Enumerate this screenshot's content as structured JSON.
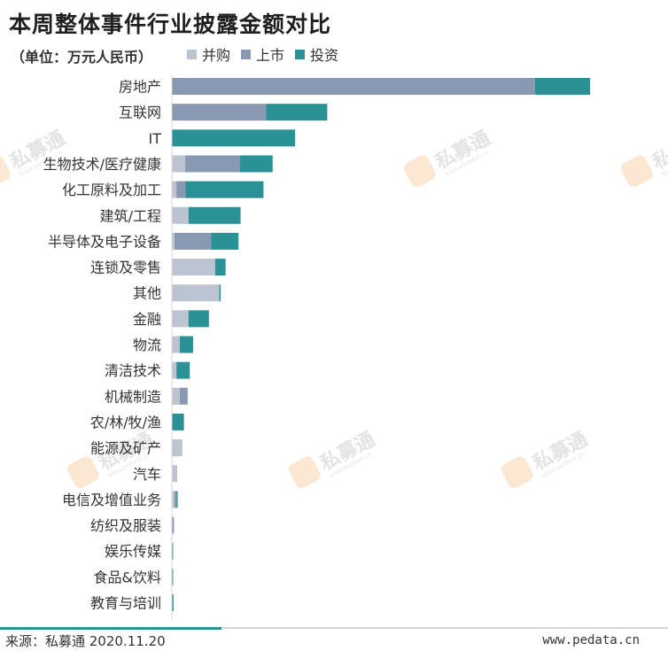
{
  "title": "本周整体事件行业披露金额对比",
  "unit": "（单位：万元人民币）",
  "watermark": {
    "text": "私募通",
    "sub": "www.pedata.cn"
  },
  "footer": {
    "source": "来源：私募通 2020.11.20",
    "site": "www.pedata.cn"
  },
  "chart_data": {
    "type": "bar",
    "orientation": "horizontal",
    "stacked": true,
    "legend_position": "top",
    "grid": false,
    "xlim": [
      0,
      100
    ],
    "categories": [
      "房地产",
      "互联网",
      "IT",
      "生物技术/医疗健康",
      "化工原料及加工",
      "建筑/工程",
      "半导体及电子设备",
      "连锁及零售",
      "其他",
      "金融",
      "物流",
      "清洁技术",
      "机械制造",
      "农/林/牧/渔",
      "能源及矿产",
      "汽车",
      "电信及增值业务",
      "纺织及服装",
      "娱乐传媒",
      "食品&饮料",
      "教育与培训"
    ],
    "series": [
      {
        "name": "并购",
        "color": "#bcc3d1",
        "values": [
          0,
          0,
          0,
          3.2,
          1.1,
          4.0,
          0.6,
          10.4,
          11.4,
          4.0,
          1.9,
          1.1,
          1.9,
          0,
          2.5,
          1.3,
          0.6,
          0,
          0,
          0,
          0
        ]
      },
      {
        "name": "上市",
        "color": "#8999b1",
        "values": [
          87.2,
          22.6,
          0,
          13.1,
          2.2,
          0,
          8.8,
          0,
          0,
          0,
          0,
          0,
          1.9,
          0,
          0,
          0,
          0.5,
          0.5,
          0,
          0,
          0
        ]
      },
      {
        "name": "投资",
        "color": "#2a9196",
        "values": [
          13.2,
          14.7,
          29.6,
          7.9,
          18.7,
          12.5,
          6.6,
          2.5,
          0.3,
          4.9,
          3.2,
          3.2,
          0,
          2.9,
          0,
          0,
          0.3,
          0,
          0.3,
          0.3,
          0.4
        ]
      }
    ]
  }
}
